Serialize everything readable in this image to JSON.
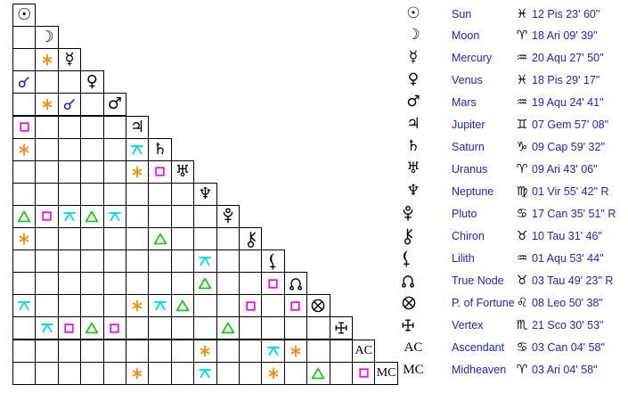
{
  "colors": {
    "background": "#ffffff",
    "grid_line": "#000000",
    "glyph": "#000000",
    "legend_text": "#2222dd",
    "conjunction": "#2222ee",
    "sextile": "#ff8d0e",
    "square": "#ff00ff",
    "trine": "#00cc00",
    "quincunx": "#00dde6"
  },
  "glyph_chars": {
    "sun": "☉",
    "moon": "☽",
    "mercury": "☿",
    "venus": "♀",
    "mars": "♂",
    "jupiter": "♃",
    "saturn": "♄",
    "uranus": "♅",
    "neptune": "♆",
    "ascendant": "AC",
    "midheaven": "MC"
  },
  "sign_chars": {
    "Pis": "♓",
    "Ari": "♈",
    "Aqu": "♒",
    "Gem": "♊",
    "Cap": "♑",
    "Vir": "♍",
    "Can": "♋",
    "Tau": "♉",
    "Leo": "♌",
    "Sco": "♏"
  },
  "chart_data": {
    "type": "table",
    "description": "Astrological aspect grid (aspectarian) with table of planetary positions",
    "aspect_types": [
      "conjunction",
      "sextile",
      "square",
      "trine",
      "quincunx"
    ],
    "positions": [
      {
        "body": "Sun",
        "glyph": "sun",
        "sign": "Pis",
        "degrees": "12 Pis 23' 60\""
      },
      {
        "body": "Moon",
        "glyph": "moon",
        "sign": "Ari",
        "degrees": "18 Ari 09' 39\""
      },
      {
        "body": "Mercury",
        "glyph": "mercury",
        "sign": "Aqu",
        "degrees": "20 Aqu 27' 50\""
      },
      {
        "body": "Venus",
        "glyph": "venus",
        "sign": "Pis",
        "degrees": "18 Pis 29' 17\""
      },
      {
        "body": "Mars",
        "glyph": "mars",
        "sign": "Aqu",
        "degrees": "19 Aqu 24' 41\""
      },
      {
        "body": "Jupiter",
        "glyph": "jupiter",
        "sign": "Gem",
        "degrees": "07 Gem 57' 08\""
      },
      {
        "body": "Saturn",
        "glyph": "saturn",
        "sign": "Cap",
        "degrees": "09 Cap 59' 32\""
      },
      {
        "body": "Uranus",
        "glyph": "uranus",
        "sign": "Ari",
        "degrees": "09 Ari 43' 06\""
      },
      {
        "body": "Neptune",
        "glyph": "neptune",
        "sign": "Vir",
        "degrees": "01 Vir 55' 42\" R"
      },
      {
        "body": "Pluto",
        "glyph": "pluto",
        "sign": "Can",
        "degrees": "17 Can 35' 51\" R"
      },
      {
        "body": "Chiron",
        "glyph": "chiron",
        "sign": "Tau",
        "degrees": "10 Tau 31' 46\""
      },
      {
        "body": "Lilith",
        "glyph": "lilith",
        "sign": "Aqu",
        "degrees": "01 Aqu 53' 44\""
      },
      {
        "body": "True Node",
        "glyph": "truenode",
        "sign": "Tau",
        "degrees": "03 Tau 49' 23\" R"
      },
      {
        "body": "P. of Fortune",
        "glyph": "fortune",
        "sign": "Leo",
        "degrees": "08 Leo 50' 38\""
      },
      {
        "body": "Vertex",
        "glyph": "vertex",
        "sign": "Sco",
        "degrees": "21 Sco 30' 53\""
      },
      {
        "body": "Ascendant",
        "glyph": "ascendant",
        "sign": "Can",
        "degrees": "03 Can 04' 58\""
      },
      {
        "body": "Midheaven",
        "glyph": "midheaven",
        "sign": "Ari",
        "degrees": "03 Ari 04' 58\""
      }
    ],
    "aspect_matrix": [
      [],
      [
        null
      ],
      [
        null,
        "sextile"
      ],
      [
        "conjunction",
        null,
        null
      ],
      [
        null,
        "sextile",
        "conjunction",
        null
      ],
      [
        "square",
        null,
        null,
        null,
        null
      ],
      [
        "sextile",
        null,
        null,
        null,
        null,
        "quincunx"
      ],
      [
        null,
        null,
        null,
        null,
        null,
        "sextile",
        "square"
      ],
      [
        null,
        null,
        null,
        null,
        null,
        null,
        null,
        null
      ],
      [
        "trine",
        "square",
        "quincunx",
        "trine",
        "quincunx",
        null,
        null,
        null,
        null
      ],
      [
        "sextile",
        null,
        null,
        null,
        null,
        null,
        "trine",
        null,
        null,
        null
      ],
      [
        null,
        null,
        null,
        null,
        null,
        null,
        null,
        null,
        "quincunx",
        null,
        null
      ],
      [
        null,
        null,
        null,
        null,
        null,
        null,
        null,
        null,
        "trine",
        null,
        null,
        "square"
      ],
      [
        "quincunx",
        null,
        null,
        null,
        null,
        "sextile",
        "quincunx",
        "trine",
        null,
        null,
        "square",
        null,
        "square"
      ],
      [
        null,
        "quincunx",
        "square",
        "trine",
        "square",
        null,
        null,
        null,
        null,
        "trine",
        null,
        null,
        null,
        null
      ],
      [
        null,
        null,
        null,
        null,
        null,
        null,
        null,
        null,
        "sextile",
        null,
        null,
        "quincunx",
        "sextile",
        null,
        null
      ],
      [
        null,
        null,
        null,
        null,
        null,
        "sextile",
        null,
        null,
        "quincunx",
        null,
        null,
        "sextile",
        null,
        "trine",
        null,
        "square"
      ]
    ]
  }
}
